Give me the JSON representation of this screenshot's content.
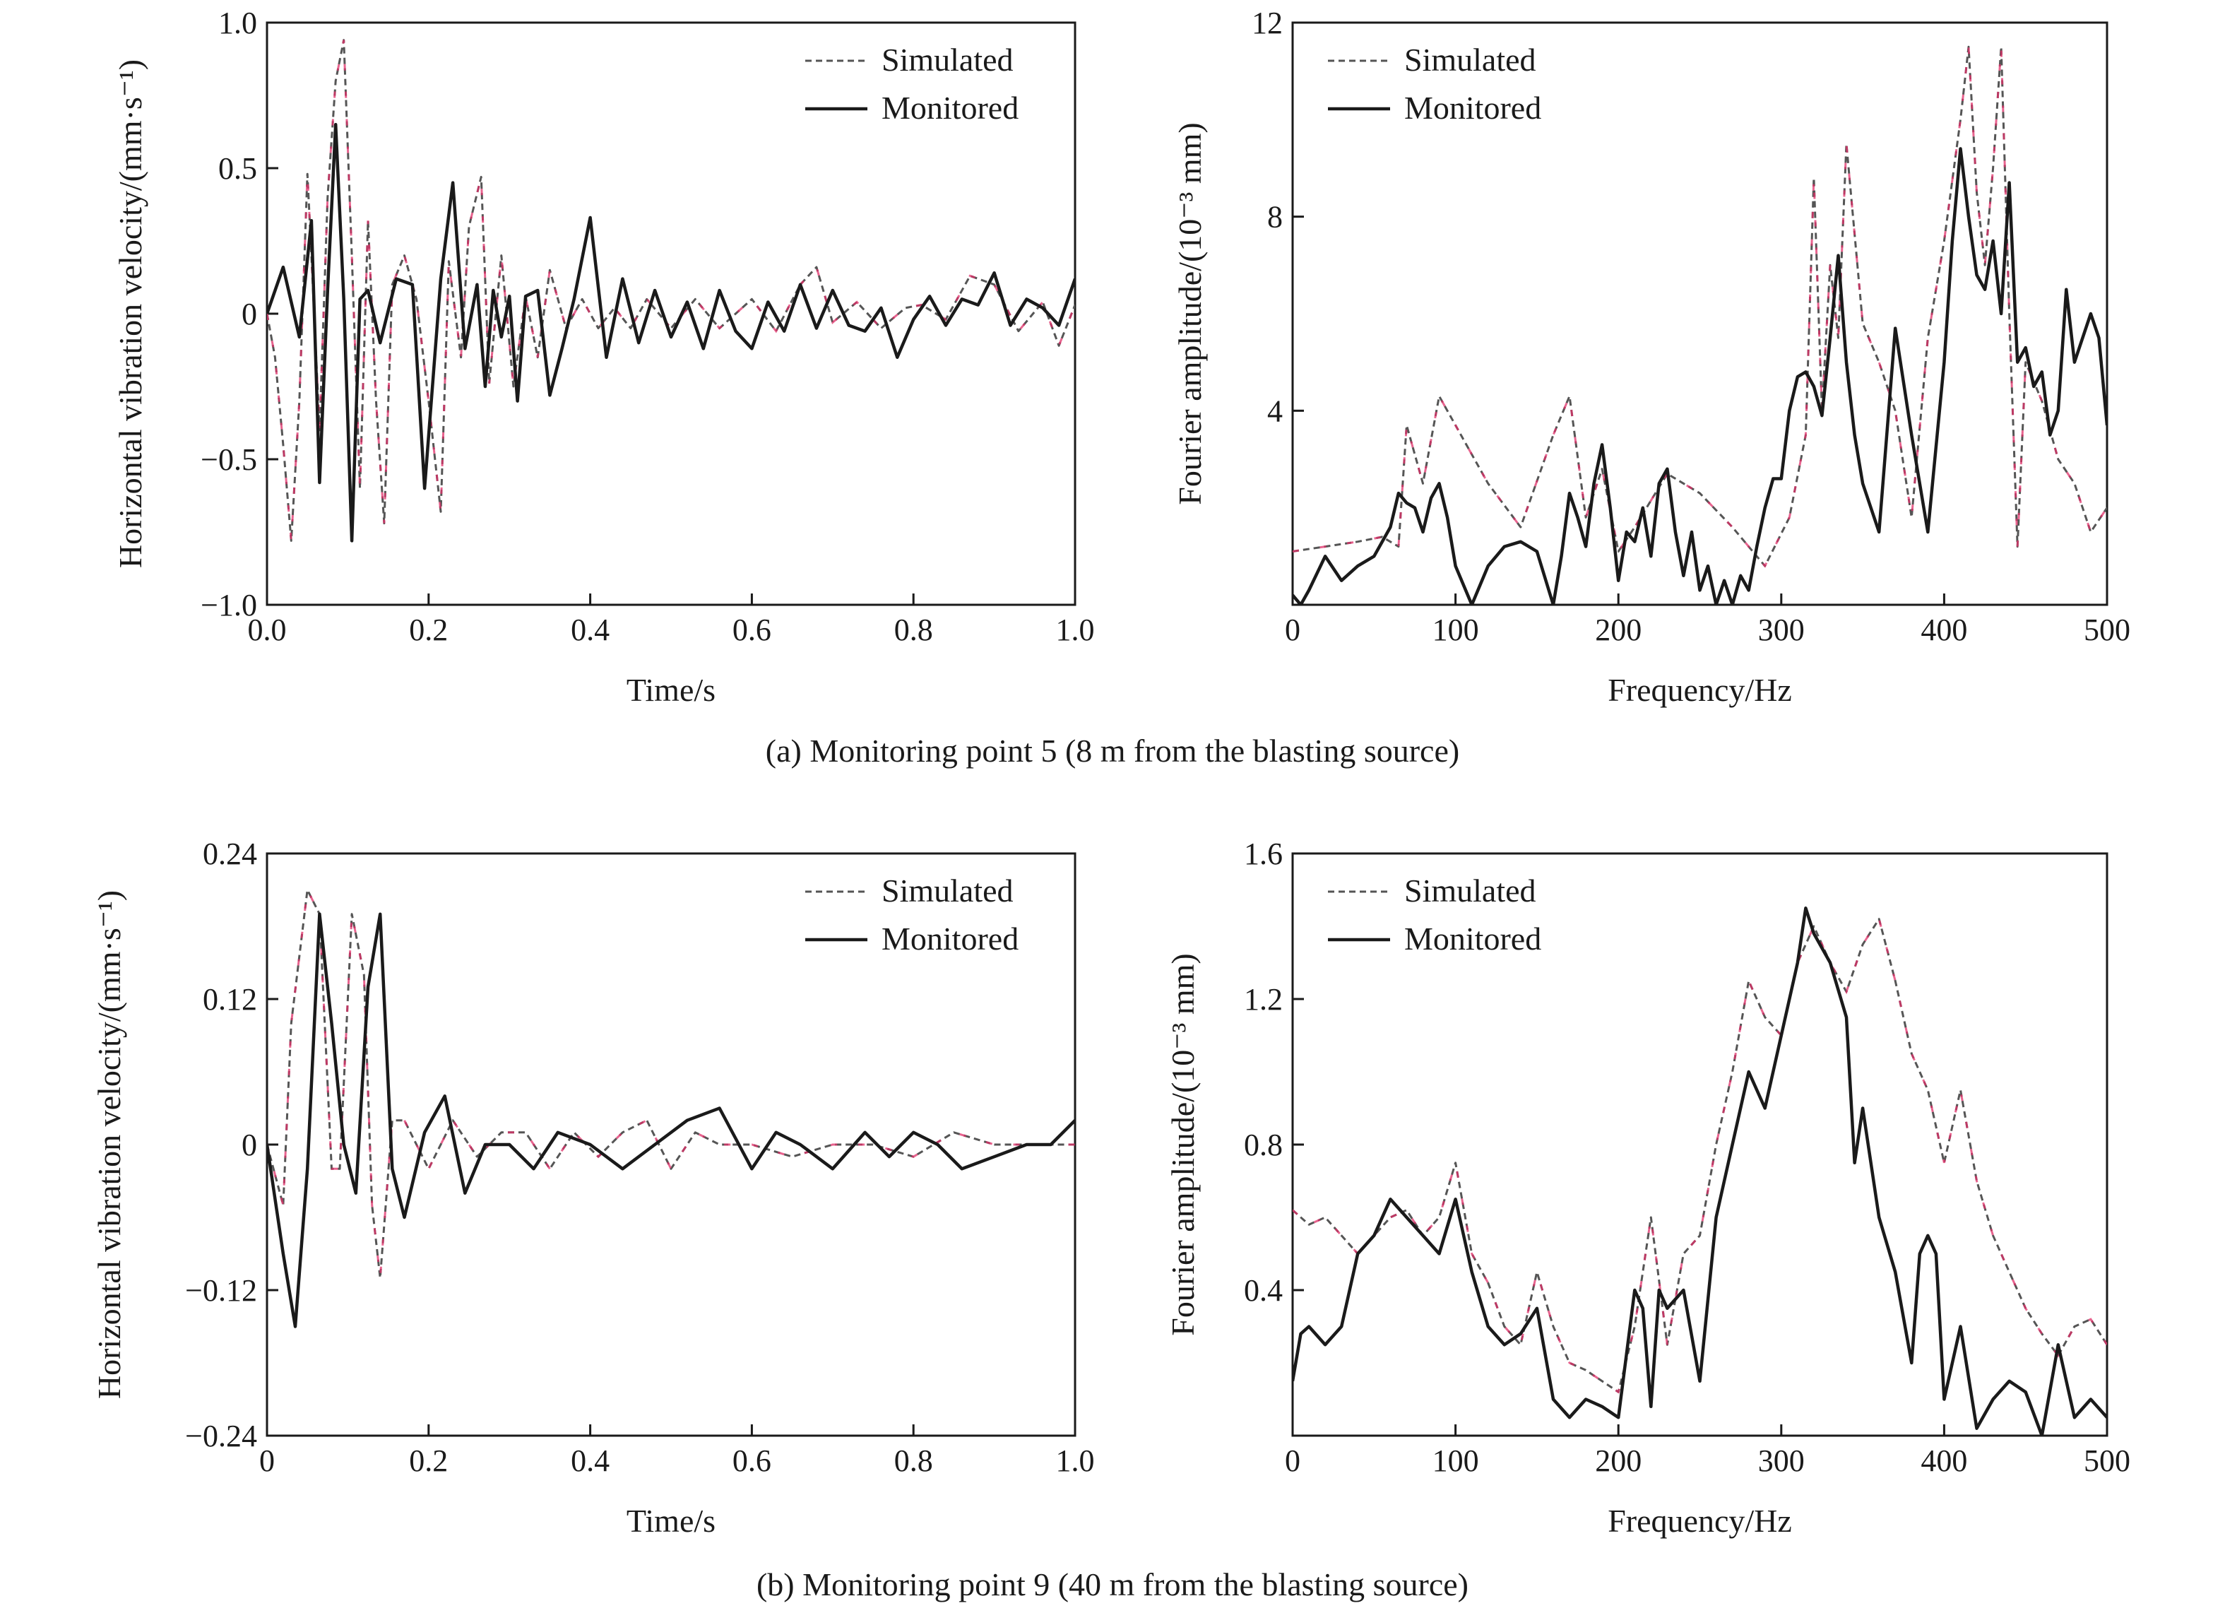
{
  "colors": {
    "simulated_dash": "#555555",
    "simulated_highlight": "#e0306a",
    "monitored": "#1a1a1a"
  },
  "captions": {
    "a": "(a) Monitoring point 5 (8 m from the blasting source)",
    "b": "(b) Monitoring point 9 (40 m from the blasting source)"
  },
  "chart_data": [
    {
      "id": "a-time",
      "type": "line",
      "xlabel": "Time/s",
      "ylabel": "Horizontal vibration velocity/(mm·s⁻¹)",
      "xlim": [
        0,
        1.0
      ],
      "ylim": [
        -1.0,
        1.0
      ],
      "xticks": [
        0,
        0.2,
        0.4,
        0.6,
        0.8,
        1.0
      ],
      "xtick_labels": [
        "0.0",
        "0.2",
        "0.4",
        "0.6",
        "0.8",
        "1.0"
      ],
      "yticks": [
        -1.0,
        -0.5,
        0,
        0.5,
        1.0
      ],
      "ytick_labels": [
        "−1.0",
        "−0.5",
        "0",
        "0.5",
        "1.0"
      ],
      "grid": false,
      "legend_position": "top-right",
      "series": [
        {
          "name": "Simulated",
          "style": "dashed",
          "x": [
            0,
            0.01,
            0.02,
            0.03,
            0.04,
            0.05,
            0.055,
            0.065,
            0.075,
            0.085,
            0.095,
            0.105,
            0.115,
            0.125,
            0.135,
            0.145,
            0.155,
            0.17,
            0.185,
            0.2,
            0.215,
            0.225,
            0.24,
            0.25,
            0.265,
            0.275,
            0.29,
            0.305,
            0.32,
            0.335,
            0.35,
            0.37,
            0.39,
            0.41,
            0.43,
            0.45,
            0.47,
            0.5,
            0.53,
            0.56,
            0.6,
            0.63,
            0.66,
            0.68,
            0.7,
            0.73,
            0.76,
            0.79,
            0.81,
            0.84,
            0.87,
            0.9,
            0.93,
            0.96,
            0.98,
            1.0
          ],
          "y": [
            0,
            -0.15,
            -0.45,
            -0.78,
            -0.3,
            0.48,
            0.2,
            -0.4,
            0.4,
            0.8,
            0.94,
            0.2,
            -0.6,
            0.32,
            -0.3,
            -0.72,
            0.1,
            0.2,
            0.05,
            -0.3,
            -0.68,
            0.18,
            -0.15,
            0.3,
            0.47,
            -0.24,
            0.2,
            -0.25,
            0.06,
            -0.15,
            0.15,
            -0.05,
            0.05,
            -0.05,
            0.02,
            -0.05,
            0.05,
            -0.05,
            0.05,
            -0.05,
            0.05,
            -0.06,
            0.1,
            0.16,
            -0.03,
            0.04,
            -0.05,
            0.02,
            0.03,
            -0.02,
            0.13,
            0.1,
            -0.06,
            0.04,
            -0.11,
            0.03
          ]
        },
        {
          "name": "Monitored",
          "style": "solid",
          "x": [
            0,
            0.02,
            0.04,
            0.055,
            0.065,
            0.075,
            0.085,
            0.095,
            0.105,
            0.115,
            0.125,
            0.14,
            0.16,
            0.18,
            0.195,
            0.215,
            0.23,
            0.245,
            0.26,
            0.27,
            0.28,
            0.29,
            0.3,
            0.31,
            0.32,
            0.335,
            0.35,
            0.365,
            0.38,
            0.4,
            0.42,
            0.44,
            0.46,
            0.48,
            0.5,
            0.52,
            0.54,
            0.56,
            0.58,
            0.6,
            0.62,
            0.64,
            0.66,
            0.68,
            0.7,
            0.72,
            0.74,
            0.76,
            0.78,
            0.8,
            0.82,
            0.84,
            0.86,
            0.88,
            0.9,
            0.92,
            0.94,
            0.96,
            0.98,
            1.0
          ],
          "y": [
            0,
            0.16,
            -0.08,
            0.32,
            -0.58,
            0.08,
            0.65,
            0.05,
            -0.78,
            0.05,
            0.08,
            -0.1,
            0.12,
            0.1,
            -0.6,
            0.12,
            0.45,
            -0.12,
            0.1,
            -0.25,
            0.08,
            -0.08,
            0.06,
            -0.3,
            0.06,
            0.08,
            -0.28,
            -0.12,
            0.05,
            0.33,
            -0.15,
            0.12,
            -0.1,
            0.08,
            -0.08,
            0.04,
            -0.12,
            0.08,
            -0.06,
            -0.12,
            0.04,
            -0.06,
            0.1,
            -0.05,
            0.08,
            -0.04,
            -0.06,
            0.02,
            -0.15,
            -0.02,
            0.06,
            -0.04,
            0.05,
            0.03,
            0.14,
            -0.04,
            0.05,
            0.02,
            -0.04,
            0.12
          ]
        }
      ]
    },
    {
      "id": "a-freq",
      "type": "line",
      "xlabel": "Frequency/Hz",
      "ylabel": "Fourier amplitude/(10⁻³ mm)",
      "xlim": [
        0,
        500
      ],
      "ylim": [
        0,
        12
      ],
      "xticks": [
        0,
        100,
        200,
        300,
        400,
        500
      ],
      "xtick_labels": [
        "0",
        "100",
        "200",
        "300",
        "400",
        "500"
      ],
      "yticks": [
        4,
        8,
        12
      ],
      "ytick_labels": [
        "4",
        "8",
        "12"
      ],
      "grid": false,
      "legend_position": "top-left",
      "series": [
        {
          "name": "Simulated",
          "style": "dashed",
          "x": [
            0,
            20,
            40,
            55,
            65,
            70,
            80,
            90,
            100,
            120,
            140,
            160,
            170,
            180,
            190,
            200,
            210,
            230,
            250,
            270,
            290,
            305,
            315,
            320,
            325,
            330,
            335,
            340,
            350,
            360,
            370,
            380,
            390,
            400,
            410,
            415,
            420,
            425,
            430,
            435,
            440,
            445,
            450,
            460,
            470,
            480,
            490,
            500
          ],
          "y": [
            1.1,
            1.2,
            1.3,
            1.4,
            1.2,
            3.7,
            2.5,
            4.3,
            3.7,
            2.5,
            1.6,
            3.5,
            4.3,
            1.8,
            2.8,
            1.1,
            1.6,
            2.7,
            2.3,
            1.6,
            0.8,
            1.8,
            3.5,
            8.8,
            4.0,
            7.0,
            5.5,
            9.5,
            5.8,
            5.0,
            4.0,
            1.8,
            5.5,
            7.5,
            10.0,
            11.5,
            8.5,
            7.0,
            9.0,
            11.5,
            6.0,
            1.2,
            5.0,
            4.2,
            3.0,
            2.5,
            1.5,
            2.0
          ]
        },
        {
          "name": "Monitored",
          "style": "solid",
          "x": [
            0,
            5,
            10,
            20,
            30,
            40,
            50,
            60,
            65,
            70,
            75,
            80,
            85,
            90,
            95,
            100,
            110,
            120,
            130,
            140,
            150,
            160,
            165,
            170,
            175,
            180,
            185,
            190,
            195,
            200,
            205,
            210,
            215,
            220,
            225,
            230,
            235,
            240,
            245,
            250,
            255,
            260,
            265,
            270,
            275,
            280,
            285,
            290,
            295,
            300,
            305,
            310,
            315,
            320,
            325,
            330,
            335,
            340,
            345,
            350,
            360,
            370,
            380,
            390,
            400,
            405,
            410,
            415,
            420,
            425,
            430,
            435,
            440,
            445,
            450,
            455,
            460,
            465,
            470,
            475,
            480,
            485,
            490,
            495,
            500
          ],
          "y": [
            0.2,
            0.0,
            0.3,
            1.0,
            0.5,
            0.8,
            1.0,
            1.6,
            2.3,
            2.1,
            2.0,
            1.5,
            2.2,
            2.5,
            1.8,
            0.8,
            0.0,
            0.8,
            1.2,
            1.3,
            1.1,
            0.0,
            1.0,
            2.3,
            1.8,
            1.2,
            2.5,
            3.3,
            2.0,
            0.5,
            1.5,
            1.3,
            2.0,
            1.0,
            2.5,
            2.8,
            1.5,
            0.6,
            1.5,
            0.3,
            0.8,
            0.0,
            0.5,
            0.0,
            0.6,
            0.3,
            1.2,
            2.0,
            2.6,
            2.6,
            4.0,
            4.7,
            4.8,
            4.5,
            3.9,
            5.5,
            7.2,
            5.0,
            3.5,
            2.5,
            1.5,
            5.7,
            3.5,
            1.5,
            5.0,
            7.5,
            9.4,
            8.0,
            6.8,
            6.5,
            7.5,
            6.0,
            8.7,
            5.0,
            5.3,
            4.5,
            4.8,
            3.5,
            4.0,
            6.5,
            5.0,
            5.5,
            6.0,
            5.5,
            3.7
          ]
        }
      ]
    },
    {
      "id": "b-time",
      "type": "line",
      "xlabel": "Time/s",
      "ylabel": "Horizontal vibration velocity/(mm·s⁻¹)",
      "xlim": [
        0,
        1.0
      ],
      "ylim": [
        -0.24,
        0.24
      ],
      "xticks": [
        0,
        0.2,
        0.4,
        0.6,
        0.8,
        1.0
      ],
      "xtick_labels": [
        "0",
        "0.2",
        "0.4",
        "0.6",
        "0.8",
        "1.0"
      ],
      "yticks": [
        -0.24,
        -0.12,
        0,
        0.12,
        0.24
      ],
      "ytick_labels": [
        "−0.24",
        "−0.12",
        "0",
        "0.12",
        "0.24"
      ],
      "grid": false,
      "legend_position": "top-right",
      "series": [
        {
          "name": "Simulated",
          "style": "dashed",
          "x": [
            0,
            0.02,
            0.03,
            0.05,
            0.065,
            0.08,
            0.09,
            0.105,
            0.12,
            0.13,
            0.14,
            0.155,
            0.17,
            0.2,
            0.23,
            0.26,
            0.29,
            0.32,
            0.35,
            0.38,
            0.41,
            0.44,
            0.47,
            0.5,
            0.53,
            0.56,
            0.6,
            0.65,
            0.7,
            0.75,
            0.8,
            0.85,
            0.9,
            0.95,
            1.0
          ],
          "y": [
            0,
            -0.05,
            0.1,
            0.21,
            0.19,
            -0.02,
            -0.02,
            0.19,
            0.14,
            -0.05,
            -0.11,
            0.02,
            0.02,
            -0.02,
            0.02,
            -0.01,
            0.01,
            0.01,
            -0.02,
            0.01,
            -0.01,
            0.01,
            0.02,
            -0.02,
            0.01,
            0.0,
            0.0,
            -0.01,
            0.0,
            0.0,
            -0.01,
            0.01,
            0.0,
            0.0,
            0.0
          ]
        },
        {
          "name": "Monitored",
          "style": "solid",
          "x": [
            0,
            0.02,
            0.035,
            0.05,
            0.065,
            0.08,
            0.095,
            0.11,
            0.125,
            0.14,
            0.155,
            0.17,
            0.195,
            0.22,
            0.245,
            0.27,
            0.3,
            0.33,
            0.36,
            0.4,
            0.44,
            0.48,
            0.52,
            0.56,
            0.6,
            0.63,
            0.66,
            0.7,
            0.74,
            0.77,
            0.8,
            0.83,
            0.86,
            0.9,
            0.94,
            0.97,
            1.0
          ],
          "y": [
            0,
            -0.09,
            -0.15,
            -0.02,
            0.19,
            0.1,
            0.0,
            -0.04,
            0.13,
            0.19,
            -0.02,
            -0.06,
            0.01,
            0.04,
            -0.04,
            0.0,
            0.0,
            -0.02,
            0.01,
            0.0,
            -0.02,
            0.0,
            0.02,
            0.03,
            -0.02,
            0.01,
            0.0,
            -0.02,
            0.01,
            -0.01,
            0.01,
            0.0,
            -0.02,
            -0.01,
            0.0,
            0.0,
            0.02
          ]
        }
      ]
    },
    {
      "id": "b-freq",
      "type": "line",
      "xlabel": "Frequency/Hz",
      "ylabel": "Fourier amplitude/(10⁻³ mm)",
      "xlim": [
        0,
        500
      ],
      "ylim": [
        0,
        1.6
      ],
      "xticks": [
        0,
        100,
        200,
        300,
        400,
        500
      ],
      "xtick_labels": [
        "0",
        "100",
        "200",
        "300",
        "400",
        "500"
      ],
      "yticks": [
        0.4,
        0.8,
        1.2,
        1.6
      ],
      "ytick_labels": [
        "0.4",
        "0.8",
        "1.2",
        "1.6"
      ],
      "grid": false,
      "legend_position": "top-left",
      "series": [
        {
          "name": "Simulated",
          "style": "dashed",
          "x": [
            0,
            10,
            20,
            30,
            40,
            50,
            60,
            70,
            80,
            90,
            100,
            110,
            120,
            130,
            140,
            150,
            160,
            170,
            180,
            190,
            200,
            210,
            220,
            230,
            240,
            250,
            260,
            270,
            280,
            290,
            300,
            310,
            320,
            330,
            340,
            350,
            360,
            370,
            380,
            390,
            400,
            410,
            420,
            430,
            440,
            450,
            460,
            470,
            480,
            490,
            500
          ],
          "y": [
            0.62,
            0.58,
            0.6,
            0.55,
            0.5,
            0.55,
            0.6,
            0.62,
            0.55,
            0.6,
            0.75,
            0.5,
            0.42,
            0.3,
            0.25,
            0.45,
            0.3,
            0.2,
            0.18,
            0.15,
            0.12,
            0.3,
            0.6,
            0.25,
            0.5,
            0.55,
            0.8,
            1.0,
            1.25,
            1.15,
            1.1,
            1.3,
            1.4,
            1.3,
            1.22,
            1.35,
            1.42,
            1.25,
            1.05,
            0.95,
            0.75,
            0.95,
            0.7,
            0.55,
            0.45,
            0.35,
            0.28,
            0.22,
            0.3,
            0.32,
            0.25
          ]
        },
        {
          "name": "Monitored",
          "style": "solid",
          "x": [
            0,
            5,
            10,
            20,
            30,
            40,
            50,
            60,
            70,
            80,
            90,
            100,
            110,
            120,
            130,
            140,
            150,
            160,
            170,
            180,
            190,
            200,
            210,
            215,
            220,
            225,
            230,
            240,
            250,
            260,
            270,
            280,
            290,
            300,
            310,
            315,
            320,
            330,
            340,
            345,
            350,
            360,
            370,
            380,
            385,
            390,
            395,
            400,
            410,
            420,
            430,
            440,
            450,
            460,
            470,
            480,
            490,
            500
          ],
          "y": [
            0.15,
            0.28,
            0.3,
            0.25,
            0.3,
            0.5,
            0.55,
            0.65,
            0.6,
            0.55,
            0.5,
            0.65,
            0.45,
            0.3,
            0.25,
            0.28,
            0.35,
            0.1,
            0.05,
            0.1,
            0.08,
            0.05,
            0.4,
            0.35,
            0.08,
            0.4,
            0.35,
            0.4,
            0.15,
            0.6,
            0.8,
            1.0,
            0.9,
            1.1,
            1.3,
            1.45,
            1.38,
            1.3,
            1.15,
            0.75,
            0.9,
            0.6,
            0.45,
            0.2,
            0.5,
            0.55,
            0.5,
            0.1,
            0.3,
            0.02,
            0.1,
            0.15,
            0.12,
            0.0,
            0.25,
            0.05,
            0.1,
            0.05
          ]
        }
      ]
    }
  ]
}
